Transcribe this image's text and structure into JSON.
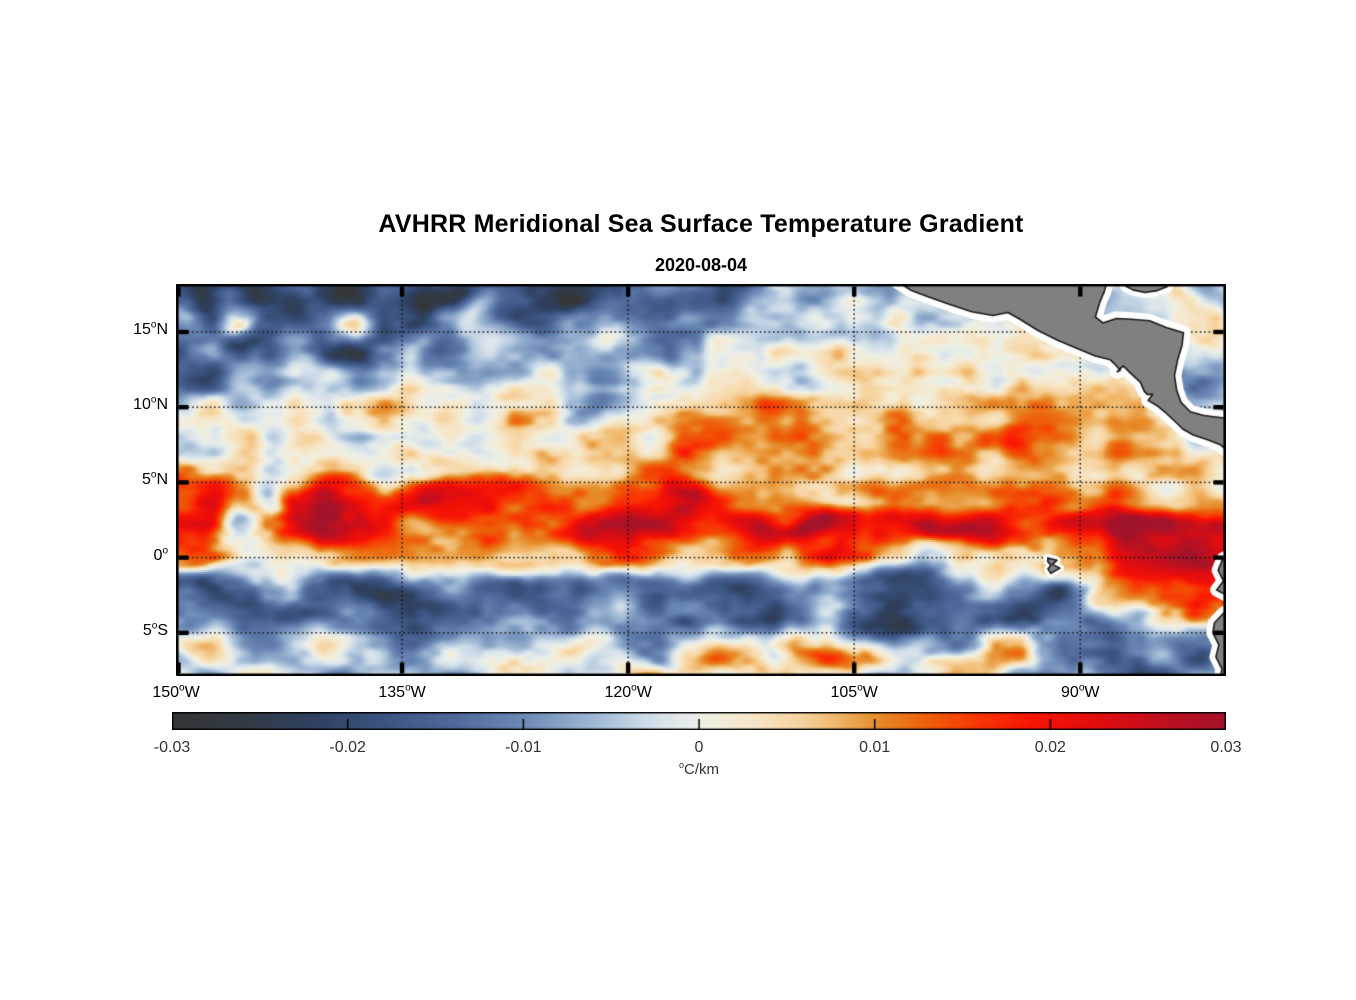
{
  "title": "AVHRR Meridional Sea Surface Temperature Gradient",
  "subtitle": "2020-08-04",
  "colorbar": {
    "unit_sup": "o",
    "unit": "C/km",
    "min": -0.03,
    "max": 0.03,
    "ticks": [
      {
        "label": "-0.03",
        "value": -0.03
      },
      {
        "label": "-0.02",
        "value": -0.02
      },
      {
        "label": "-0.01",
        "value": -0.01
      },
      {
        "label": "0",
        "value": 0
      },
      {
        "label": "0.01",
        "value": 0.01
      },
      {
        "label": "0.02",
        "value": 0.02
      },
      {
        "label": "0.03",
        "value": 0.03
      }
    ]
  },
  "chart_data": {
    "type": "heatmap",
    "units": "degC/km",
    "lon_range": [
      -150,
      -80.33
    ],
    "lat_range": [
      -7.87,
      18.19
    ],
    "gridlines": {
      "lats": [
        15,
        10,
        5,
        0,
        -5
      ],
      "lons": [
        -150,
        -135,
        -120,
        -105,
        -90
      ],
      "style": "dotted"
    },
    "lat_ticks": [
      {
        "label": "15",
        "sup": "o",
        "suffix": "N",
        "lat": 15
      },
      {
        "label": "10",
        "sup": "o",
        "suffix": "N",
        "lat": 10
      },
      {
        "label": "5",
        "sup": "o",
        "suffix": "N",
        "lat": 5
      },
      {
        "label": "0",
        "sup": "o",
        "suffix": "",
        "lat": 0
      },
      {
        "label": "5",
        "sup": "o",
        "suffix": "S",
        "lat": -5
      }
    ],
    "lon_ticks": [
      {
        "label": "150",
        "sup": "o",
        "suffix": "W",
        "lon": -150
      },
      {
        "label": "135",
        "sup": "o",
        "suffix": "W",
        "lon": -135
      },
      {
        "label": "120",
        "sup": "o",
        "suffix": "W",
        "lon": -120
      },
      {
        "label": "105",
        "sup": "o",
        "suffix": "W",
        "lon": -105
      },
      {
        "label": "90",
        "sup": "o",
        "suffix": "W",
        "lon": -90
      }
    ],
    "grid": {
      "lon_start": -150,
      "lon_step": 2,
      "lat_start": 18,
      "lat_step": -2,
      "values": [
        [
          -0.016,
          -0.024,
          -0.019,
          -0.026,
          -0.017,
          -0.022,
          -0.027,
          -0.015,
          -0.023,
          -0.028,
          -0.017,
          -0.011,
          -0.02,
          -0.026,
          -0.021,
          -0.013,
          -0.007,
          -0.013,
          -0.019,
          -0.011,
          -0.005,
          -0.009,
          -0.004,
          -0.007,
          -0.003,
          -0.005,
          -0.002,
          -0.004,
          -0.002,
          -0.005,
          -0.003,
          -0.006,
          -0.004,
          0.002,
          -0.006,
          -0.003
        ],
        [
          -0.009,
          -0.019,
          0.005,
          -0.014,
          -0.021,
          -0.011,
          0.004,
          -0.017,
          -0.024,
          -0.013,
          -0.005,
          -0.017,
          -0.021,
          -0.009,
          -0.008,
          -0.012,
          -0.015,
          -0.013,
          -0.01,
          -0.007,
          -0.003,
          0.004,
          -0.002,
          -0.005,
          0.002,
          -0.003,
          0.001,
          -0.002,
          0.003,
          -0.001,
          -0.004,
          -0.002,
          -0.006,
          -0.001,
          0.004,
          -0.004
        ],
        [
          -0.017,
          -0.011,
          -0.021,
          -0.015,
          -0.007,
          -0.019,
          -0.023,
          -0.011,
          -0.005,
          -0.015,
          -0.009,
          -0.003,
          -0.011,
          -0.005,
          -0.001,
          -0.007,
          -0.011,
          -0.006,
          0.003,
          -0.003,
          0.002,
          -0.002,
          0.004,
          -0.003,
          0.003,
          0.002,
          0.004,
          0.001,
          0.003,
          0.005,
          0.002,
          -0.004,
          -0.007,
          -0.003,
          0.002,
          -0.004
        ],
        [
          -0.015,
          -0.019,
          -0.007,
          -0.013,
          -0.005,
          -0.001,
          -0.009,
          -0.003,
          0.003,
          -0.005,
          -0.011,
          -0.005,
          0.004,
          -0.007,
          -0.013,
          -0.005,
          0.003,
          -0.003,
          0.004,
          0.007,
          0.002,
          -0.003,
          0.005,
          0.009,
          0.004,
          -0.001,
          0.006,
          0.003,
          0.007,
          0.004,
          0.006,
          0.003,
          -0.002,
          -0.008,
          -0.009,
          -0.004
        ],
        [
          -0.004,
          0.002,
          -0.006,
          -0.002,
          0.004,
          -0.004,
          0.002,
          0.006,
          0.012,
          0.004,
          -0.002,
          0.005,
          0.003,
          -0.005,
          -0.009,
          -0.003,
          0.004,
          0.008,
          0.005,
          0.01,
          0.014,
          0.008,
          0.004,
          0.009,
          0.013,
          0.007,
          0.01,
          0.006,
          0.009,
          0.012,
          0.007,
          0.004,
          0.006,
          -0.004,
          -0.008,
          -0.005
        ],
        [
          0.002,
          -0.004,
          0.003,
          -0.002,
          0.004,
          0.001,
          -0.003,
          0.004,
          0.002,
          -0.004,
          0.003,
          0.006,
          0.002,
          -0.002,
          0.004,
          0.007,
          0.003,
          0.016,
          0.012,
          0.006,
          0.01,
          0.015,
          0.009,
          0.005,
          0.011,
          0.016,
          0.01,
          0.013,
          0.017,
          0.009,
          0.006,
          0.012,
          0.008,
          0.004,
          -0.006,
          -0.003
        ],
        [
          0.014,
          0.008,
          0.003,
          -0.003,
          0.002,
          0.006,
          0.003,
          -0.002,
          0.004,
          0.008,
          0.004,
          0.002,
          0.006,
          0.003,
          0.007,
          0.01,
          0.014,
          0.008,
          0.005,
          0.003,
          0.006,
          0.009,
          0.005,
          0.008,
          0.004,
          0.007,
          0.011,
          0.006,
          0.009,
          0.013,
          0.007,
          0.01,
          0.006,
          0.003,
          0.007,
          0.004
        ],
        [
          0.019,
          0.023,
          0.01,
          -0.008,
          0.021,
          0.027,
          0.019,
          0.013,
          0.022,
          0.027,
          0.024,
          0.02,
          0.017,
          0.014,
          0.011,
          0.016,
          0.022,
          0.025,
          0.018,
          0.008,
          0.005,
          0.008,
          0.006,
          0.01,
          0.013,
          0.008,
          0.005,
          0.009,
          0.014,
          0.019,
          0.009,
          0.018,
          0.011,
          0.007,
          0.009,
          0.006
        ],
        [
          0.017,
          0.02,
          -0.006,
          0.009,
          0.022,
          0.026,
          0.021,
          0.015,
          0.011,
          0.009,
          0.014,
          0.011,
          0.013,
          0.019,
          0.025,
          0.028,
          0.025,
          0.023,
          0.019,
          0.021,
          0.027,
          0.03,
          0.025,
          0.021,
          0.023,
          0.027,
          0.03,
          0.027,
          0.021,
          0.016,
          0.022,
          0.029,
          0.027,
          0.025,
          0.023,
          0.025
        ],
        [
          0.006,
          0.011,
          0.008,
          0.002,
          0.005,
          0.009,
          0.013,
          0.01,
          0.006,
          0.004,
          0.007,
          0.005,
          0.007,
          0.005,
          0.011,
          0.015,
          0.011,
          0.005,
          0.003,
          0.007,
          0.011,
          0.019,
          0.021,
          0.015,
          0.005,
          -0.005,
          0.003,
          0.009,
          0.007,
          0.005,
          0.013,
          0.021,
          0.027,
          0.03,
          0.027,
          0.024
        ],
        [
          -0.019,
          -0.023,
          -0.019,
          -0.011,
          -0.007,
          -0.014,
          -0.019,
          -0.022,
          -0.017,
          -0.011,
          -0.014,
          -0.017,
          -0.019,
          -0.015,
          -0.009,
          -0.013,
          -0.017,
          -0.011,
          -0.014,
          -0.019,
          -0.015,
          -0.007,
          -0.003,
          -0.011,
          -0.017,
          -0.019,
          -0.011,
          -0.005,
          -0.014,
          -0.019,
          -0.009,
          0.007,
          0.013,
          0.016,
          0.021,
          0.016
        ],
        [
          -0.007,
          -0.011,
          -0.015,
          -0.019,
          -0.021,
          -0.015,
          -0.009,
          -0.013,
          -0.017,
          -0.019,
          -0.013,
          -0.007,
          -0.011,
          -0.015,
          -0.007,
          -0.003,
          -0.009,
          -0.015,
          -0.009,
          -0.017,
          -0.021,
          -0.013,
          -0.007,
          -0.017,
          -0.023,
          -0.013,
          -0.009,
          -0.017,
          -0.021,
          -0.013,
          -0.011,
          -0.017,
          -0.009,
          0.004,
          0.017,
          0.009
        ],
        [
          -0.003,
          0.004,
          -0.005,
          -0.009,
          -0.003,
          0.004,
          -0.005,
          -0.011,
          -0.007,
          -0.001,
          -0.007,
          -0.011,
          -0.005,
          0.004,
          -0.003,
          -0.012,
          -0.01,
          0.004,
          0.011,
          0.007,
          -0.003,
          0.009,
          0.013,
          0.007,
          -0.005,
          -0.011,
          -0.007,
          0.007,
          0.011,
          -0.005,
          -0.013,
          -0.017,
          -0.011,
          -0.005,
          -0.014,
          -0.009
        ],
        [
          -0.002,
          -0.007,
          -0.003,
          0.004,
          -0.005,
          -0.009,
          -0.003,
          0.002,
          -0.005,
          -0.009,
          -0.003,
          0.004,
          -0.001,
          -0.007,
          -0.003,
          0.005,
          0.009,
          0.005,
          -0.003,
          0.007,
          0.011,
          0.005,
          -0.003,
          -0.009,
          -0.005,
          0.004,
          0.009,
          0.005,
          -0.007,
          -0.011,
          -0.005,
          -0.013,
          -0.019,
          -0.014,
          -0.007,
          -0.011
        ]
      ]
    },
    "colormap_stops": [
      [
        -0.03,
        "#34373a"
      ],
      [
        -0.026,
        "#333a43"
      ],
      [
        -0.022,
        "#2f4161"
      ],
      [
        -0.018,
        "#3b5480"
      ],
      [
        -0.014,
        "#50699b"
      ],
      [
        -0.01,
        "#6c8ab6"
      ],
      [
        -0.006,
        "#9fb8d5"
      ],
      [
        -0.003,
        "#cfdde9"
      ],
      [
        -0.001,
        "#e4ebeb"
      ],
      [
        0,
        "#ecefe6"
      ],
      [
        0.001,
        "#f2eede"
      ],
      [
        0.003,
        "#f6e7c9"
      ],
      [
        0.006,
        "#f6d29c"
      ],
      [
        0.008,
        "#f0b465"
      ],
      [
        0.01,
        "#e78f2e"
      ],
      [
        0.013,
        "#ee5f0a"
      ],
      [
        0.016,
        "#f93504"
      ],
      [
        0.019,
        "#f81505"
      ],
      [
        0.022,
        "#e80d0c"
      ],
      [
        0.026,
        "#c50f1d"
      ],
      [
        0.03,
        "#a2142c"
      ]
    ],
    "land_color": "#808080",
    "coast_halo_color": "#ffffff",
    "coast_outline_color": "#1a1a1a",
    "land_polygons": {
      "central_america": [
        [
          -102.3,
          18.45
        ],
        [
          -101.2,
          17.75
        ],
        [
          -100.1,
          17.35
        ],
        [
          -98.7,
          16.85
        ],
        [
          -97.2,
          16.35
        ],
        [
          -95.8,
          16.1
        ],
        [
          -94.8,
          16.3
        ],
        [
          -94.0,
          15.85
        ],
        [
          -92.8,
          15.1
        ],
        [
          -91.5,
          14.45
        ],
        [
          -90.2,
          13.9
        ],
        [
          -89.0,
          13.4
        ],
        [
          -88.0,
          13.15
        ],
        [
          -87.75,
          12.9
        ],
        [
          -87.35,
          12.45
        ],
        [
          -87.55,
          12.35
        ],
        [
          -87.15,
          12.75
        ],
        [
          -86.7,
          12.3
        ],
        [
          -86.0,
          11.65
        ],
        [
          -85.75,
          11.05
        ],
        [
          -85.55,
          10.85
        ],
        [
          -85.2,
          10.85
        ],
        [
          -85.5,
          10.45
        ],
        [
          -84.9,
          10.1
        ],
        [
          -84.3,
          9.6
        ],
        [
          -83.6,
          8.95
        ],
        [
          -83.2,
          8.55
        ],
        [
          -82.5,
          8.15
        ],
        [
          -81.6,
          7.85
        ],
        [
          -80.7,
          7.5
        ],
        [
          -80.1,
          7.0
        ],
        [
          -79.8,
          6.0
        ],
        [
          -79.85,
          4.75
        ],
        [
          -79.4,
          4.6
        ],
        [
          -79.4,
          9.2
        ],
        [
          -80.6,
          9.3
        ],
        [
          -81.8,
          9.45
        ],
        [
          -82.7,
          9.7
        ],
        [
          -83.3,
          10.3
        ],
        [
          -83.6,
          11.1
        ],
        [
          -83.75,
          12.1
        ],
        [
          -83.55,
          13.1
        ],
        [
          -83.25,
          14.1
        ],
        [
          -83.15,
          14.95
        ],
        [
          -84.3,
          15.3
        ],
        [
          -85.4,
          15.75
        ],
        [
          -86.6,
          15.85
        ],
        [
          -87.6,
          15.9
        ],
        [
          -88.5,
          15.6
        ],
        [
          -89.0,
          16.0
        ],
        [
          -88.7,
          17.0
        ],
        [
          -88.4,
          17.7
        ],
        [
          -88.2,
          18.45
        ]
      ],
      "caribbean_corner": [
        [
          -87.1,
          18.45
        ],
        [
          -84.0,
          18.45
        ],
        [
          -84.25,
          18.0
        ],
        [
          -84.9,
          17.75
        ],
        [
          -85.7,
          17.62
        ],
        [
          -86.5,
          17.8
        ],
        [
          -87.0,
          18.05
        ]
      ],
      "south_america": [
        [
          -79.5,
          0.45
        ],
        [
          -80.55,
          -0.1
        ],
        [
          -80.85,
          -0.85
        ],
        [
          -80.5,
          -1.55
        ],
        [
          -80.95,
          -2.15
        ],
        [
          -80.2,
          -2.55
        ],
        [
          -79.7,
          -2.75
        ],
        [
          -79.7,
          -3.3
        ],
        [
          -80.45,
          -3.65
        ],
        [
          -81.1,
          -4.35
        ],
        [
          -81.2,
          -5.0
        ],
        [
          -80.8,
          -5.8
        ],
        [
          -81.0,
          -6.6
        ],
        [
          -80.6,
          -7.4
        ],
        [
          -80.75,
          -8.3
        ],
        [
          -79.3,
          -8.3
        ]
      ],
      "galapagos": [
        [
          -92.15,
          -0.02
        ],
        [
          -91.55,
          -0.18
        ],
        [
          -91.85,
          -0.45
        ],
        [
          -91.35,
          -0.7
        ],
        [
          -91.95,
          -1.05
        ],
        [
          -92.15,
          -0.75
        ],
        [
          -91.95,
          -0.5
        ],
        [
          -92.15,
          -0.28
        ]
      ]
    }
  }
}
